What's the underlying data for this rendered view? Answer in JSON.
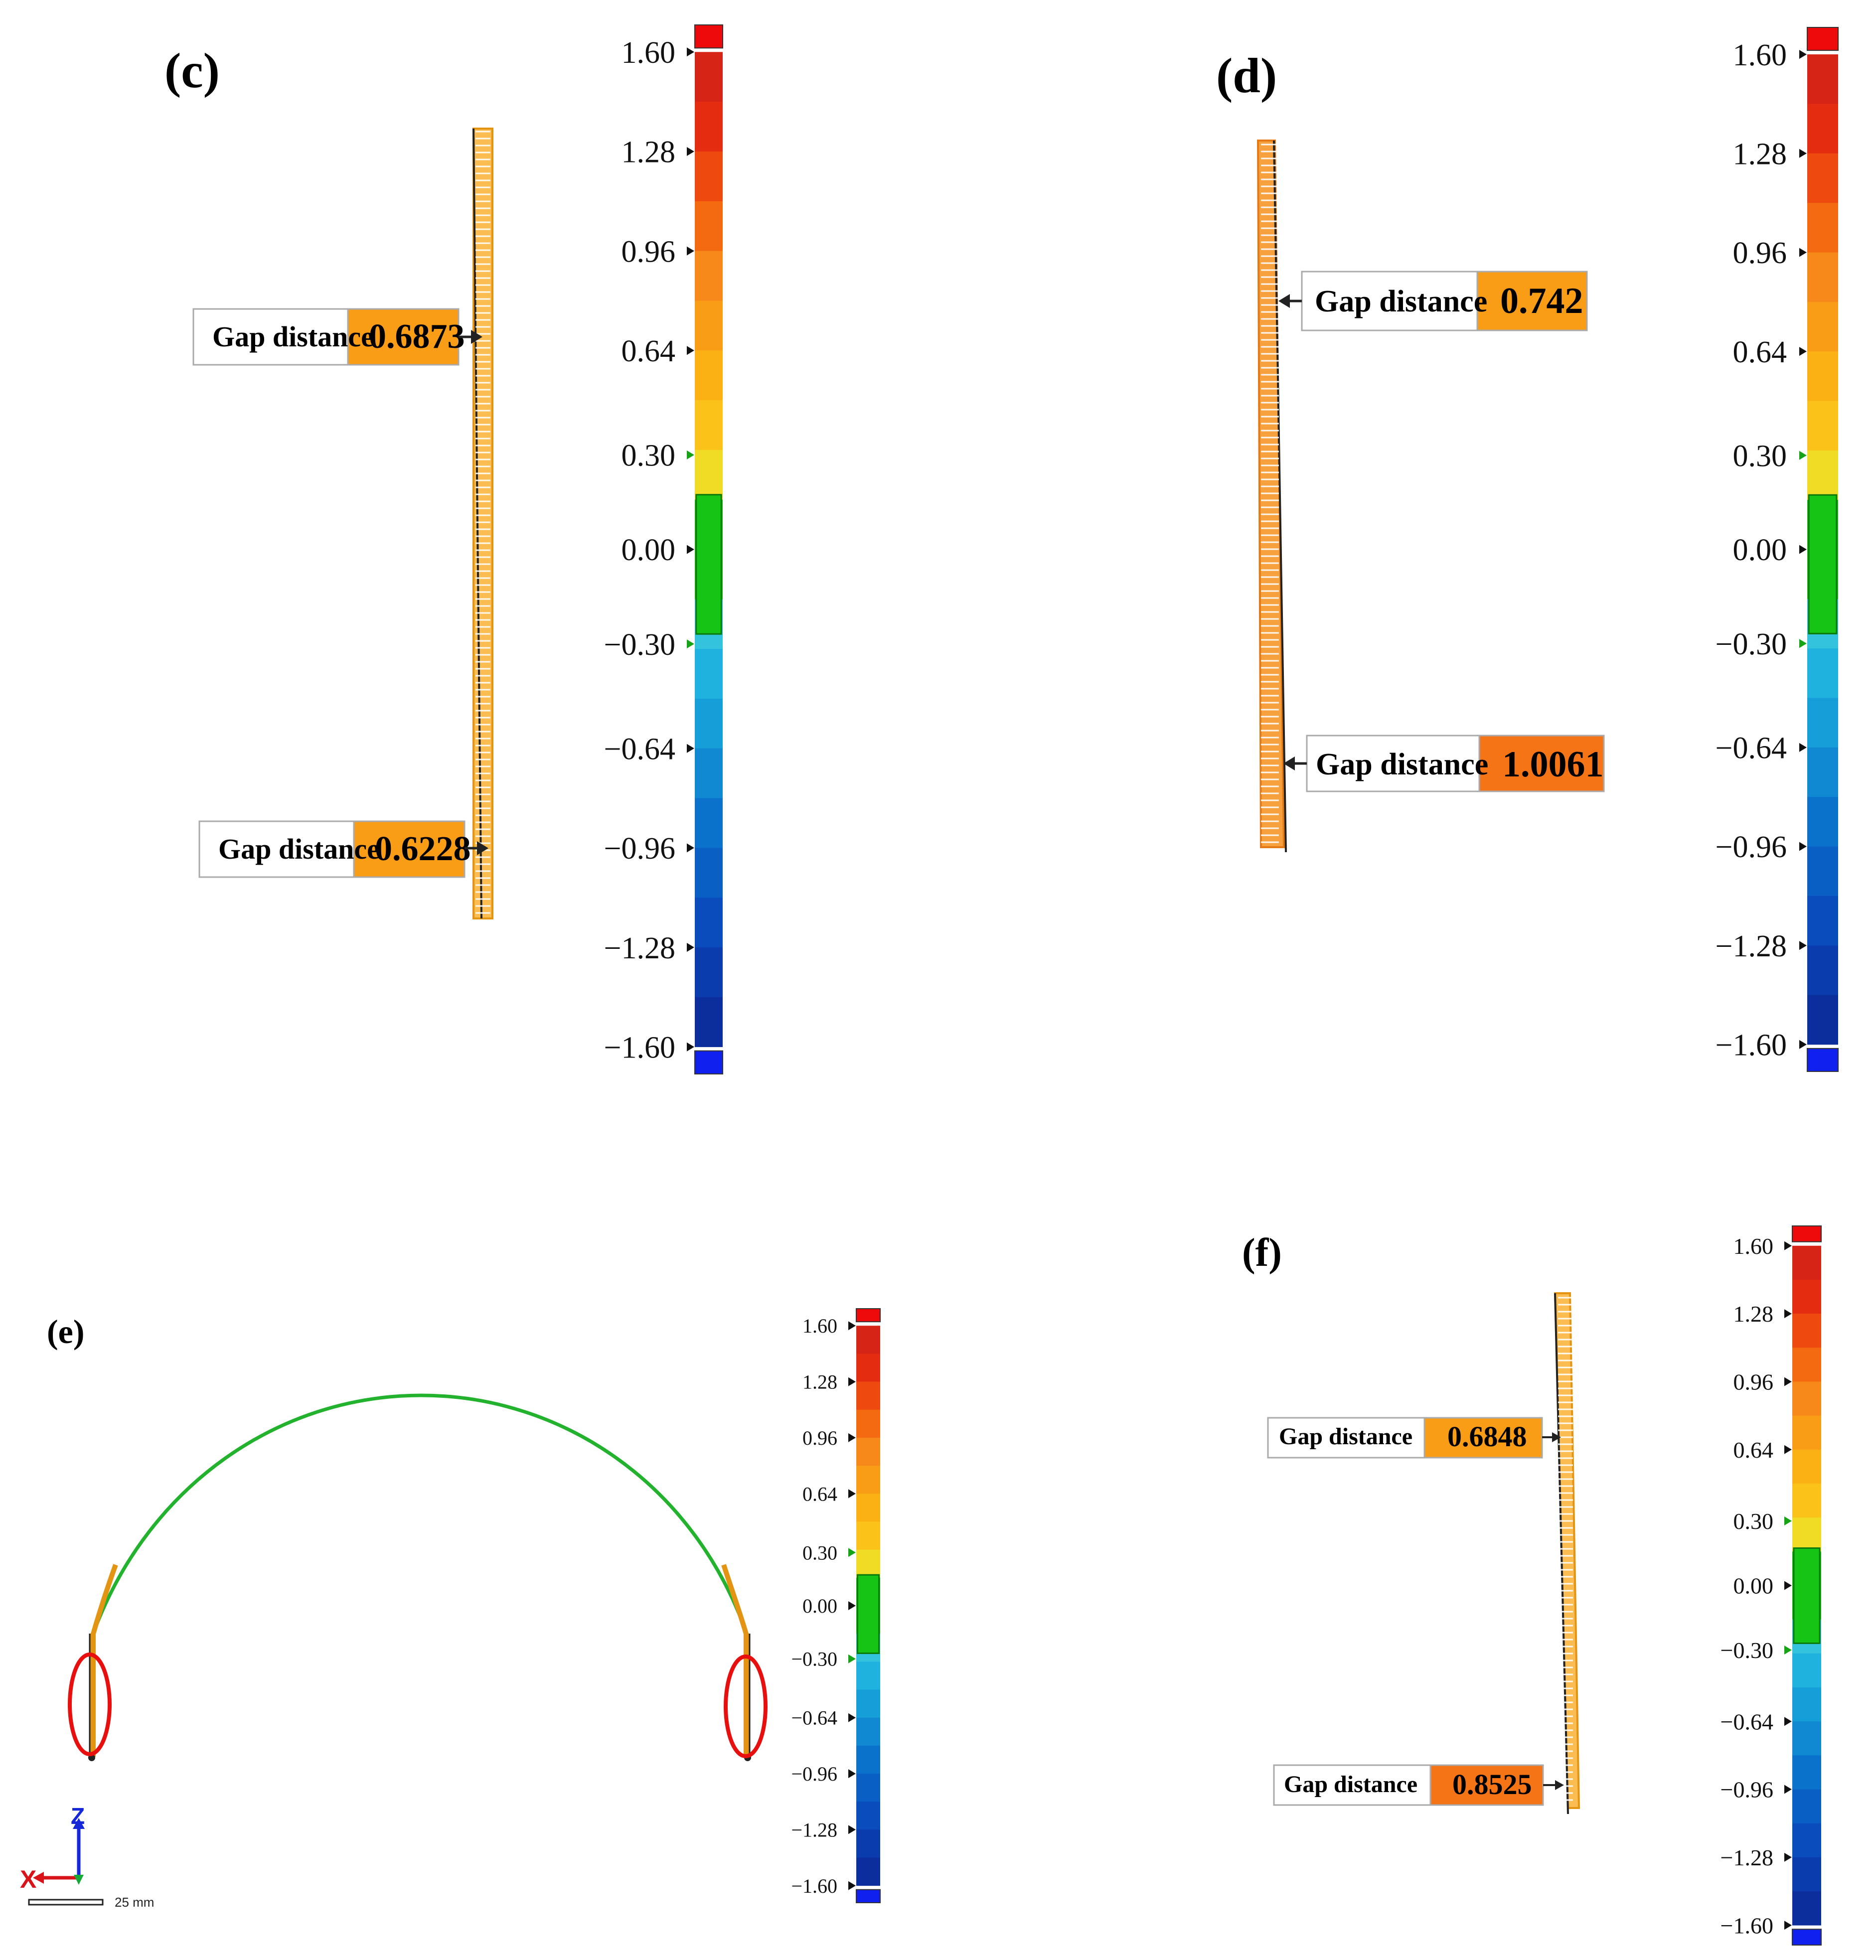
{
  "colors": {
    "scale": [
      "#d62516",
      "#e42d10",
      "#ee4a10",
      "#f46a10",
      "#f7891a",
      "#f99c16",
      "#fbb014",
      "#fbc21a",
      "#f0dc24",
      "#16c416",
      "#16c416",
      "#33c3dd",
      "#1fb2df",
      "#169ed8",
      "#1088d2",
      "#0b72cc",
      "#0a5fc4",
      "#0a4cbc",
      "#0a3cae",
      "#0c2e9c"
    ],
    "over": "#ee0a0a",
    "under": "#1020ee",
    "gap_fill_orange": "#f99c16",
    "gap_fill_dark": "#f47416",
    "arc_green": "#22b22e",
    "arc_orange": "#e39412",
    "ellipse_red": "#e8100e",
    "axis_z": "#1428d8",
    "axis_x": "#d8141a",
    "axis_y": "#18a838"
  },
  "panels": [
    {
      "id": "c",
      "label": "(c)",
      "gaps": [
        {
          "label": "Gap distance",
          "value": "0.6873"
        },
        {
          "label": "Gap distance",
          "value": "0.6228"
        }
      ],
      "scale_ticks": [
        "1.60",
        "1.28",
        "0.96",
        "0.64",
        "0.30",
        "0.00",
        "−0.30",
        "−0.64",
        "−0.96",
        "−1.28",
        "−1.60"
      ]
    },
    {
      "id": "d",
      "label": "(d)",
      "gaps": [
        {
          "label": "Gap distance",
          "value": "0.742"
        },
        {
          "label": "Gap distance",
          "value": "1.0061"
        }
      ],
      "scale_ticks": [
        "1.60",
        "1.28",
        "0.96",
        "0.64",
        "0.30",
        "0.00",
        "−0.30",
        "−0.64",
        "−0.96",
        "−1.28",
        "−1.60"
      ]
    },
    {
      "id": "e",
      "label": "(e)",
      "scale_ticks": [
        "1.60",
        "1.28",
        "0.96",
        "0.64",
        "0.30",
        "0.00",
        "−0.30",
        "−0.64",
        "−0.96",
        "−1.28",
        "−1.60"
      ],
      "axes": {
        "z": "Z",
        "x": "X"
      },
      "scale_bar": "25 mm"
    },
    {
      "id": "f",
      "label": "(f)",
      "gaps": [
        {
          "label": "Gap distance",
          "value": "0.6848"
        },
        {
          "label": "Gap distance",
          "value": "0.8525"
        }
      ],
      "scale_ticks": [
        "1.60",
        "1.28",
        "0.96",
        "0.64",
        "0.30",
        "0.00",
        "−0.30",
        "−0.64",
        "−0.96",
        "−1.28",
        "−1.60"
      ]
    }
  ]
}
